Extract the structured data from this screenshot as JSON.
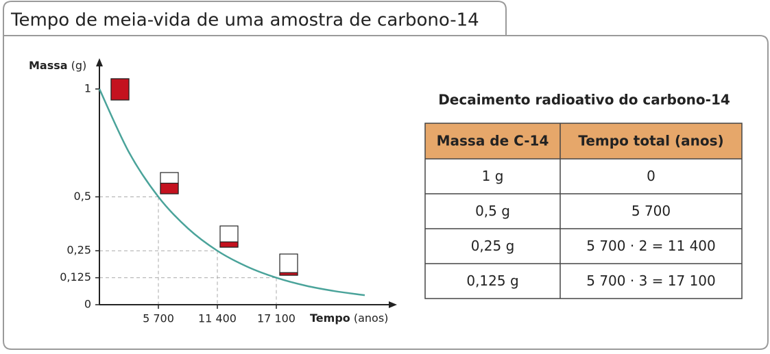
{
  "title": "Tempo de meia-vida de uma amostra de carbono-14",
  "chart_data": {
    "type": "line",
    "y_label": "Massa",
    "y_unit": "(g)",
    "x_label": "Tempo",
    "x_unit": "(anos)",
    "x": [
      0,
      2850,
      5700,
      8550,
      11400,
      14250,
      17100,
      19950,
      22800,
      25650
    ],
    "values": [
      1,
      0.707,
      0.5,
      0.354,
      0.25,
      0.177,
      0.125,
      0.088,
      0.0625,
      0.044
    ],
    "color": "#4aa39a",
    "xlim": [
      0,
      28500
    ],
    "ylim": [
      0,
      1.13
    ],
    "xticks": [
      {
        "value": 5700,
        "label": "5 700"
      },
      {
        "value": 11400,
        "label": "11 400"
      },
      {
        "value": 17100,
        "label": "17 100"
      }
    ],
    "yticks": [
      0,
      {
        "value": 0.125,
        "label": "0,125"
      },
      {
        "value": 0.25,
        "label": "0,25"
      },
      {
        "value": 0.5,
        "label": "0,5"
      },
      1
    ]
  },
  "table": {
    "title": "Decaimento radioativo do carbono-14",
    "header": [
      "Massa de C-14",
      "Tempo total (anos)"
    ],
    "rows": [
      [
        "1 g",
        "0"
      ],
      [
        "0,5 g",
        "5 700"
      ],
      [
        "0,25 g",
        "5 700 · 2 = 11 400"
      ],
      [
        "0,125 g",
        "5 700 · 3 = 17 100"
      ]
    ]
  }
}
